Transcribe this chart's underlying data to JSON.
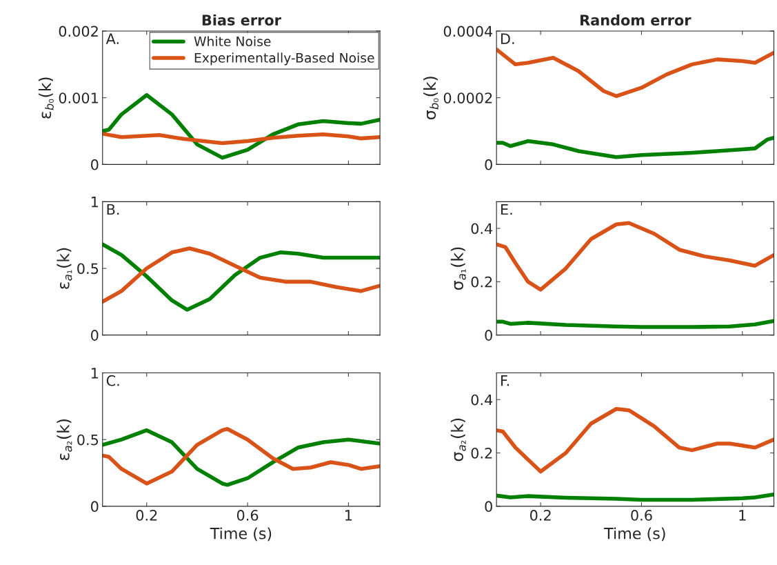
{
  "chart_data": [
    {
      "type": "line",
      "title": "Bias error",
      "ylabel": "ε$_{b₀}$(k)",
      "annotations": [
        "A."
      ],
      "xlim": [
        0.025,
        1.125
      ],
      "xticks": [
        0.2,
        0.6,
        1
      ],
      "ylim": [
        0,
        0.002
      ],
      "yticks": [
        0,
        0.001,
        0.002
      ],
      "tick_labels": "y",
      "legend": "top right",
      "grid": false,
      "series": [
        {
          "name": "White Noise",
          "color": "#008000",
          "x": [
            0.025,
            0.05,
            0.1,
            0.2,
            0.3,
            0.4,
            0.5,
            0.6,
            0.7,
            0.8,
            0.9,
            1.0,
            1.05,
            1.125
          ],
          "values": [
            0.0005,
            0.00052,
            0.00075,
            0.00104,
            0.00075,
            0.0003,
            0.0001,
            0.00022,
            0.00045,
            0.0006,
            0.00065,
            0.00062,
            0.00061,
            0.00067
          ]
        },
        {
          "name": "Experimentally-Based Noise",
          "color": "#d95319",
          "x": [
            0.025,
            0.1,
            0.2,
            0.25,
            0.35,
            0.5,
            0.6,
            0.7,
            0.8,
            0.9,
            1.0,
            1.05,
            1.125
          ],
          "values": [
            0.00046,
            0.00041,
            0.00043,
            0.00044,
            0.00038,
            0.00032,
            0.00035,
            0.0004,
            0.00043,
            0.00045,
            0.00042,
            0.00039,
            0.00041
          ]
        }
      ]
    },
    {
      "type": "line",
      "title": "Random error",
      "ylabel": "σ$_{b₀}$(k)",
      "annotations": [
        "D."
      ],
      "xlim": [
        0.025,
        1.125
      ],
      "xticks": [
        0.2,
        0.6,
        1
      ],
      "ylim": [
        0,
        0.0004
      ],
      "yticks": [
        0,
        0.0002,
        0.0004
      ],
      "tick_labels": "y",
      "grid": false,
      "series": [
        {
          "color": "#d95319",
          "x": [
            0.025,
            0.1,
            0.15,
            0.25,
            0.35,
            0.45,
            0.5,
            0.6,
            0.7,
            0.8,
            0.9,
            1.0,
            1.05,
            1.125
          ],
          "values": [
            0.000345,
            0.0003,
            0.000305,
            0.00032,
            0.00028,
            0.00022,
            0.000205,
            0.00023,
            0.00027,
            0.0003,
            0.000315,
            0.00031,
            0.000305,
            0.000335
          ]
        },
        {
          "color": "#008000",
          "x": [
            0.025,
            0.05,
            0.08,
            0.15,
            0.25,
            0.35,
            0.5,
            0.6,
            0.8,
            0.9,
            1.0,
            1.05,
            1.1,
            1.125
          ],
          "values": [
            6.5e-05,
            6.5e-05,
            5.5e-05,
            7e-05,
            6e-05,
            4e-05,
            2.2e-05,
            2.8e-05,
            3.5e-05,
            4e-05,
            4.5e-05,
            4.8e-05,
            7.5e-05,
            8e-05
          ]
        }
      ]
    },
    {
      "type": "line",
      "ylabel": "ε$_{a₁}$(k)",
      "annotations": [
        "B."
      ],
      "xlim": [
        0.025,
        1.125
      ],
      "xticks": [
        0.2,
        0.6,
        1
      ],
      "ylim": [
        0,
        1
      ],
      "yticks": [
        0,
        0.5,
        1
      ],
      "tick_labels": "y",
      "grid": false,
      "series": [
        {
          "color": "#008000",
          "x": [
            0.025,
            0.1,
            0.2,
            0.3,
            0.36,
            0.45,
            0.55,
            0.65,
            0.73,
            0.8,
            0.9,
            1.0,
            1.125
          ],
          "values": [
            0.68,
            0.6,
            0.44,
            0.26,
            0.19,
            0.27,
            0.45,
            0.58,
            0.62,
            0.61,
            0.58,
            0.58,
            0.58
          ]
        },
        {
          "color": "#d95319",
          "x": [
            0.025,
            0.1,
            0.2,
            0.3,
            0.37,
            0.45,
            0.55,
            0.65,
            0.75,
            0.85,
            0.95,
            1.05,
            1.125
          ],
          "values": [
            0.25,
            0.33,
            0.5,
            0.62,
            0.65,
            0.61,
            0.52,
            0.43,
            0.4,
            0.4,
            0.36,
            0.33,
            0.37
          ]
        }
      ]
    },
    {
      "type": "line",
      "ylabel": "σ$_{a₁}$(k)",
      "annotations": [
        "E."
      ],
      "xlim": [
        0.025,
        1.125
      ],
      "xticks": [
        0.2,
        0.6,
        1
      ],
      "ylim": [
        0,
        0.5
      ],
      "yticks": [
        0,
        0.2,
        0.4
      ],
      "tick_labels": "y",
      "grid": false,
      "series": [
        {
          "color": "#d95319",
          "x": [
            0.025,
            0.06,
            0.1,
            0.15,
            0.2,
            0.3,
            0.4,
            0.5,
            0.55,
            0.65,
            0.75,
            0.85,
            0.95,
            1.05,
            1.125
          ],
          "values": [
            0.34,
            0.33,
            0.27,
            0.2,
            0.17,
            0.25,
            0.36,
            0.415,
            0.42,
            0.38,
            0.32,
            0.295,
            0.28,
            0.26,
            0.3
          ]
        },
        {
          "color": "#008000",
          "x": [
            0.025,
            0.05,
            0.08,
            0.15,
            0.3,
            0.5,
            0.6,
            0.8,
            0.95,
            1.05,
            1.125
          ],
          "values": [
            0.05,
            0.05,
            0.042,
            0.046,
            0.038,
            0.032,
            0.03,
            0.03,
            0.032,
            0.04,
            0.053
          ]
        }
      ]
    },
    {
      "type": "line",
      "xlabel": "Time (s)",
      "ylabel": "ε$_{a₂}$(k)",
      "annotations": [
        "C."
      ],
      "xlim": [
        0.025,
        1.125
      ],
      "xticks": [
        0.2,
        0.6,
        1
      ],
      "ylim": [
        0,
        1
      ],
      "yticks": [
        0,
        0.5,
        1
      ],
      "grid": false,
      "series": [
        {
          "color": "#008000",
          "x": [
            0.025,
            0.1,
            0.2,
            0.3,
            0.4,
            0.5,
            0.52,
            0.6,
            0.7,
            0.8,
            0.9,
            1.0,
            1.125
          ],
          "values": [
            0.46,
            0.5,
            0.57,
            0.48,
            0.28,
            0.17,
            0.16,
            0.21,
            0.33,
            0.44,
            0.48,
            0.5,
            0.47
          ]
        },
        {
          "color": "#d95319",
          "x": [
            0.025,
            0.05,
            0.1,
            0.2,
            0.3,
            0.4,
            0.5,
            0.52,
            0.6,
            0.7,
            0.78,
            0.85,
            0.93,
            1.0,
            1.05,
            1.125
          ],
          "values": [
            0.38,
            0.37,
            0.28,
            0.17,
            0.26,
            0.46,
            0.57,
            0.58,
            0.5,
            0.36,
            0.28,
            0.29,
            0.33,
            0.31,
            0.28,
            0.3
          ]
        }
      ]
    },
    {
      "type": "line",
      "xlabel": "Time (s)",
      "ylabel": "σ$_{a₂}$(k)",
      "annotations": [
        "F."
      ],
      "xlim": [
        0.025,
        1.125
      ],
      "xticks": [
        0.2,
        0.6,
        1
      ],
      "ylim": [
        0,
        0.5
      ],
      "yticks": [
        0,
        0.2,
        0.4
      ],
      "grid": false,
      "series": [
        {
          "color": "#d95319",
          "x": [
            0.025,
            0.05,
            0.1,
            0.2,
            0.3,
            0.4,
            0.5,
            0.55,
            0.65,
            0.75,
            0.8,
            0.9,
            0.95,
            1.05,
            1.125
          ],
          "values": [
            0.285,
            0.28,
            0.22,
            0.13,
            0.2,
            0.31,
            0.365,
            0.36,
            0.3,
            0.22,
            0.21,
            0.235,
            0.235,
            0.22,
            0.25
          ]
        },
        {
          "color": "#008000",
          "x": [
            0.025,
            0.08,
            0.15,
            0.3,
            0.5,
            0.6,
            0.8,
            1.0,
            1.05,
            1.125
          ],
          "values": [
            0.04,
            0.033,
            0.038,
            0.032,
            0.028,
            0.024,
            0.024,
            0.03,
            0.033,
            0.044
          ]
        }
      ]
    }
  ]
}
